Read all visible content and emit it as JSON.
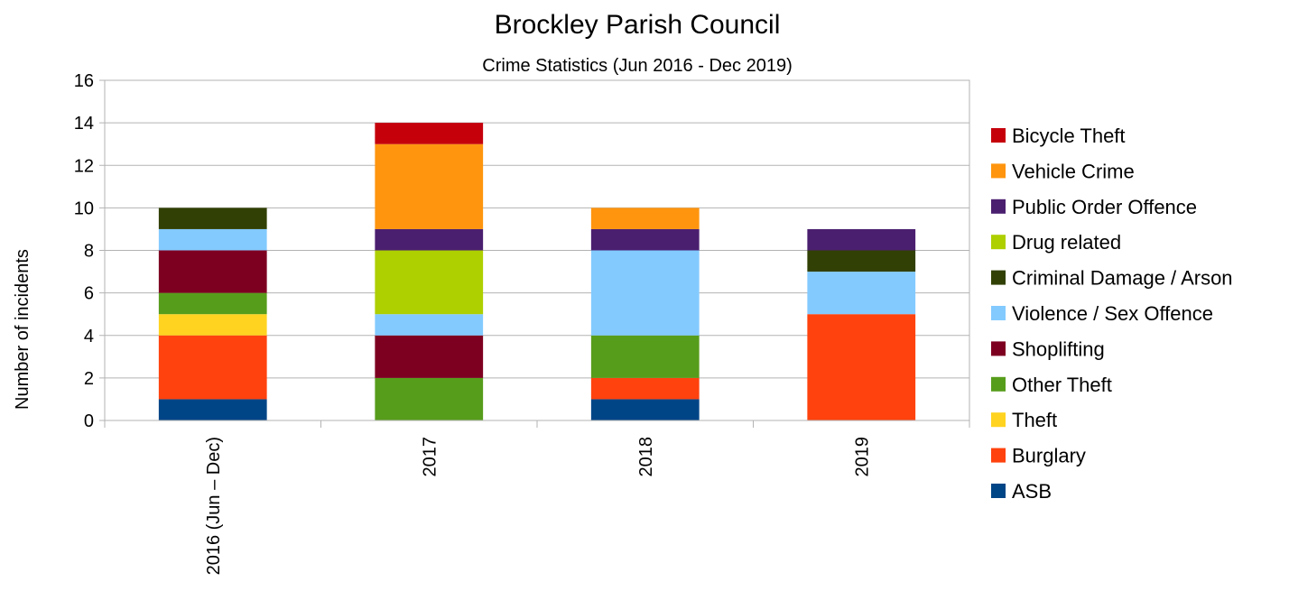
{
  "chart_data": {
    "type": "bar",
    "stacked": true,
    "title": "Brockley Parish Council",
    "subtitle": "Crime Statistics (Jun 2016 - Dec 2019)",
    "xlabel": "",
    "ylabel": "Number of incidents",
    "ylim": [
      0,
      16
    ],
    "yticks": [
      0,
      2,
      4,
      6,
      8,
      10,
      12,
      14,
      16
    ],
    "grid": true,
    "legend_position": "right",
    "categories": [
      "2016 (Jun – Dec)",
      "2017",
      "2018",
      "2019"
    ],
    "series": [
      {
        "name": "ASB",
        "color": "#004586",
        "values": [
          1,
          0,
          1,
          0
        ]
      },
      {
        "name": "Burglary",
        "color": "#ff420e",
        "values": [
          3,
          0,
          1,
          5
        ]
      },
      {
        "name": "Theft",
        "color": "#ffd320",
        "values": [
          1,
          0,
          0,
          0
        ]
      },
      {
        "name": "Other Theft",
        "color": "#579d1c",
        "values": [
          1,
          2,
          2,
          0
        ]
      },
      {
        "name": "Shoplifting",
        "color": "#7e0021",
        "values": [
          2,
          2,
          0,
          0
        ]
      },
      {
        "name": "Violence / Sex Offence",
        "color": "#83caff",
        "values": [
          1,
          1,
          4,
          2
        ]
      },
      {
        "name": "Criminal Damage / Arson",
        "color": "#314004",
        "values": [
          1,
          0,
          0,
          1
        ]
      },
      {
        "name": "Drug related",
        "color": "#aecf00",
        "values": [
          0,
          3,
          0,
          0
        ]
      },
      {
        "name": "Public Order Offence",
        "color": "#4b1f6f",
        "values": [
          0,
          1,
          1,
          1
        ]
      },
      {
        "name": "Vehicle Crime",
        "color": "#ff950e",
        "values": [
          0,
          4,
          1,
          0
        ]
      },
      {
        "name": "Bicycle Theft",
        "color": "#c5000b",
        "values": [
          0,
          1,
          0,
          0
        ]
      }
    ]
  }
}
